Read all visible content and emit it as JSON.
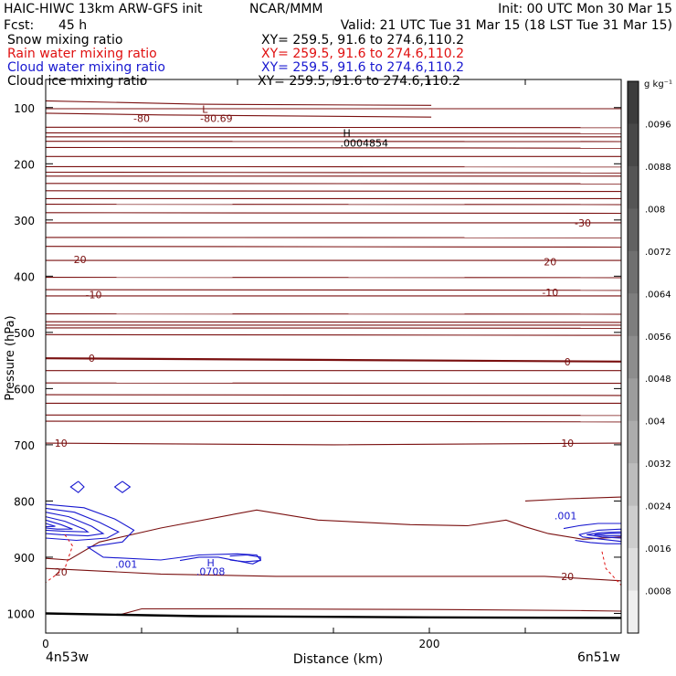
{
  "header": {
    "model": "HAIC-HIWC 13km ARW-GFS init",
    "org": "NCAR/MMM",
    "init": "Init: 00 UTC Mon 30 Mar 15",
    "fcst_label": "Fcst:",
    "fcst_value": "45 h",
    "valid": "Valid: 21 UTC Tue 31 Mar 15 (18 LST Tue 31 Mar 15)"
  },
  "fields": [
    {
      "name": "Snow mixing ratio",
      "xy": "XY= 259.5, 91.6 to 274.6,110.2",
      "color": "#000000"
    },
    {
      "name": "Rain water mixing ratio",
      "xy": "XY= 259.5, 91.6 to 274.6,110.2",
      "color": "#e01010"
    },
    {
      "name": "Cloud water mixing ratio",
      "xy": "XY= 259.5, 91.6 to 274.6,110.2",
      "color": "#1818d0"
    },
    {
      "name": "Cloud ice mixing ratio",
      "xy": "XY= 259.5, 91.6 to 274.6,110.2",
      "color": "#000000"
    }
  ],
  "chart_data": {
    "type": "cross-section contour",
    "xlabel": "Distance (km)",
    "ylabel": "Pressure (hPa)",
    "x_ticks": [
      0,
      200
    ],
    "x_range_km": [
      0,
      300
    ],
    "y_ticks": [
      100,
      200,
      300,
      400,
      500,
      600,
      700,
      800,
      900,
      1000
    ],
    "y_range_hpa": [
      50,
      1035
    ],
    "y_scale": "linear, inverted",
    "left_endpoint": "4n53w",
    "right_endpoint": "6n51w",
    "temperature_contour_labels": [
      {
        "text": "-80",
        "x": 50,
        "p": 119
      },
      {
        "text": "-80.69",
        "x": 89,
        "p": 119
      },
      {
        "text": "L",
        "x": 83,
        "p": 103
      },
      {
        "text": "-30",
        "x": 280,
        "p": 305
      },
      {
        "text": "-20",
        "x": 17,
        "p": 370
      },
      {
        "text": "20",
        "x": 263,
        "p": 374
      },
      {
        "text": "-10",
        "x": 25,
        "p": 433
      },
      {
        "text": "-10",
        "x": 263,
        "p": 429
      },
      {
        "text": "0",
        "x": 24,
        "p": 546
      },
      {
        "text": "0",
        "x": 272,
        "p": 552
      },
      {
        "text": "10",
        "x": 8,
        "p": 697
      },
      {
        "text": "10",
        "x": 272,
        "p": 697
      },
      {
        "text": "20",
        "x": 8,
        "p": 926
      },
      {
        "text": "20",
        "x": 272,
        "p": 934
      }
    ],
    "maximum_marker": {
      "symbol": "H",
      "value": ".0004854",
      "x": 155,
      "p": 155
    },
    "cloud_water_labels": [
      {
        "text": ".001",
        "x": 42,
        "p": 912
      },
      {
        "text": "H",
        "x": 86,
        "p": 910
      },
      {
        "text": ".0708",
        "x": 86,
        "p": 925
      },
      {
        "text": ".001",
        "x": 271,
        "p": 826
      }
    ],
    "colorbar": {
      "unit": "g kg⁻¹",
      "ticks": [
        ".0096",
        ".0088",
        ".008",
        ".0072",
        ".0064",
        ".0056",
        ".0048",
        ".004",
        ".0032",
        ".0024",
        ".0016",
        ".0008"
      ],
      "colors": [
        "#3c3c3c",
        "#484848",
        "#555555",
        "#626262",
        "#707070",
        "#7e7e7e",
        "#8d8d8d",
        "#9c9c9c",
        "#acacac",
        "#bcbcbc",
        "#cdcdcd",
        "#dedede",
        "#efefef"
      ]
    }
  }
}
